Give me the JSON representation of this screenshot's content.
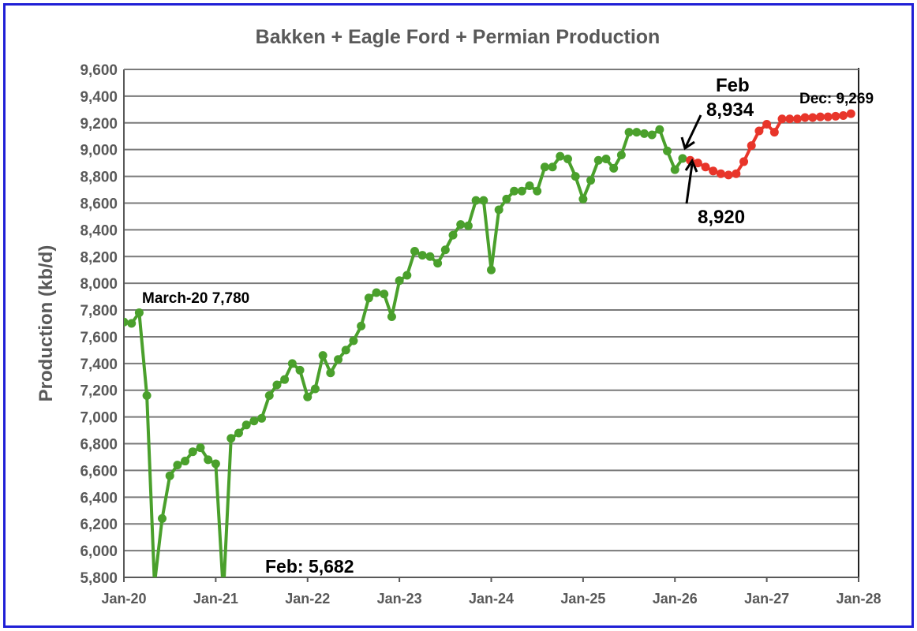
{
  "chart_data": {
    "type": "line",
    "title": "Bakken + Eagle Ford + Permian Production",
    "ylabel": "Production (kb/d)",
    "xlabel": "",
    "ylim": [
      5800,
      9600
    ],
    "ytick_step": 200,
    "yticks": [
      "5,800",
      "6,000",
      "6,200",
      "6,400",
      "6,600",
      "6,800",
      "7,000",
      "7,200",
      "7,400",
      "7,600",
      "7,800",
      "8,000",
      "8,200",
      "8,400",
      "8,600",
      "8,800",
      "9,000",
      "9,200",
      "9,400",
      "9,600"
    ],
    "xticks": [
      "Jan-20",
      "Jan-21",
      "Jan-22",
      "Jan-23",
      "Jan-24",
      "Jan-25",
      "Jan-26",
      "Jan-27",
      "Jan-28"
    ],
    "xlim": [
      "2020-01",
      "2028-01"
    ],
    "grid": "horizontal",
    "colors": {
      "actual": "#4aa02c",
      "forecast": "#e8352a",
      "frame": "#1f1fd6",
      "grid": "#7a7a7a",
      "title": "#595959"
    },
    "series": [
      {
        "key": "actual",
        "start": "2020-01",
        "values": [
          7710,
          7700,
          7780,
          7160,
          5750,
          6240,
          6560,
          6640,
          6670,
          6740,
          6770,
          6680,
          6650,
          5682,
          6840,
          6880,
          6940,
          6970,
          6990,
          7160,
          7240,
          7280,
          7400,
          7350,
          7150,
          7210,
          7460,
          7330,
          7430,
          7500,
          7570,
          7680,
          7890,
          7930,
          7920,
          7750,
          8020,
          8060,
          8240,
          8210,
          8200,
          8150,
          8250,
          8360,
          8440,
          8430,
          8620,
          8620,
          8100,
          8550,
          8630,
          8690,
          8690,
          8730,
          8690,
          8870,
          8870,
          8950,
          8930,
          8800,
          8630,
          8770,
          8920,
          8930,
          8860,
          8960,
          9130,
          9130,
          9120,
          9110,
          9150,
          8990,
          8850,
          8934
        ]
      },
      {
        "key": "forecast",
        "start": "2026-03",
        "values": [
          8920,
          8900,
          8870,
          8840,
          8820,
          8810,
          8820,
          8910,
          9030,
          9140,
          9190,
          9130,
          9230,
          9230,
          9230,
          9240,
          9240,
          9245,
          9245,
          9250,
          9255,
          9269
        ]
      }
    ],
    "annotations": {
      "march20": "March-20 7,780",
      "feb21": "Feb: 5,682",
      "feb26_title": "Feb",
      "feb26_value": "8,934",
      "mar26_value": "8,920",
      "dec27": "Dec: 9,269"
    }
  }
}
